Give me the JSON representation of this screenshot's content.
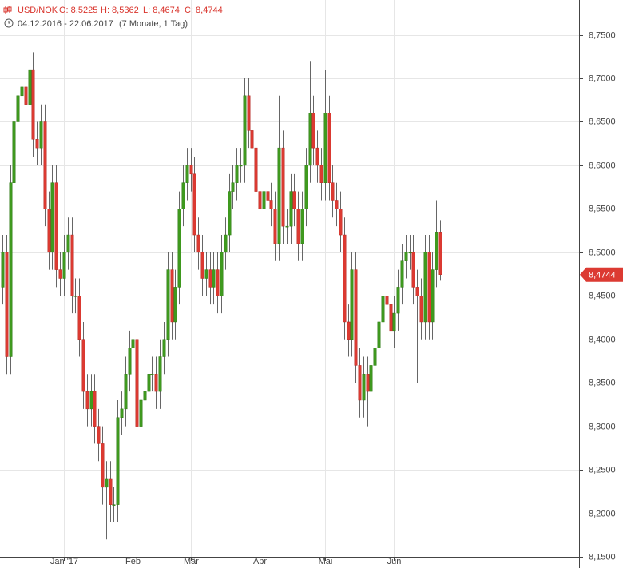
{
  "chart_data": {
    "type": "candlestick",
    "header": {
      "symbol": "USD/NOK",
      "open": "O: 8,5225",
      "high": "H: 8,5362",
      "low": "L: 8,4674",
      "close": "C: 8,4744",
      "range": "04.12.2016 - 22.06.2017",
      "duration": "(7 Monate, 1 Tag)"
    },
    "last_label": "8,4744",
    "up_color": "#3f9a1f",
    "down_color": "#dc3a32",
    "grid": true,
    "categories": [
      null,
      null,
      null,
      null,
      null,
      null,
      null,
      null,
      null,
      null,
      null,
      null,
      null,
      null,
      null,
      null,
      "Jan '17",
      null,
      null,
      null,
      null,
      null,
      null,
      null,
      null,
      null,
      null,
      null,
      null,
      null,
      null,
      null,
      null,
      null,
      "Feb",
      null,
      null,
      null,
      null,
      null,
      null,
      null,
      null,
      null,
      null,
      null,
      null,
      null,
      null,
      "Mär",
      null,
      null,
      null,
      null,
      null,
      null,
      null,
      null,
      null,
      null,
      null,
      null,
      null,
      null,
      null,
      null,
      null,
      "Apr",
      null,
      null,
      null,
      null,
      null,
      null,
      null,
      null,
      null,
      null,
      null,
      null,
      null,
      null,
      null,
      null,
      "Mai",
      null,
      null,
      null,
      null,
      null,
      null,
      null,
      null,
      null,
      null,
      null,
      null,
      null,
      null,
      null,
      null,
      null,
      "Jun",
      null,
      null,
      null,
      null,
      null,
      null,
      null,
      null,
      null,
      null,
      null,
      null
    ],
    "open": [
      8.46,
      8.5,
      8.38,
      8.58,
      8.65,
      8.68,
      8.69,
      8.67,
      8.71,
      8.63,
      8.62,
      8.65,
      8.55,
      8.5,
      8.58,
      8.48,
      8.47,
      8.5,
      8.52,
      8.45,
      8.45,
      8.4,
      8.34,
      8.32,
      8.34,
      8.3,
      8.28,
      8.23,
      8.24,
      8.21,
      8.21,
      8.31,
      8.32,
      8.36,
      8.39,
      8.4,
      8.3,
      8.33,
      8.34,
      8.36,
      8.36,
      8.34,
      8.38,
      8.4,
      8.48,
      8.42,
      8.46,
      8.55,
      8.58,
      8.6,
      8.59,
      8.52,
      8.5,
      8.47,
      8.48,
      8.46,
      8.48,
      8.45,
      8.5,
      8.52,
      8.57,
      8.58,
      8.6,
      8.6,
      8.68,
      8.64,
      8.62,
      8.57,
      8.55,
      8.57,
      8.56,
      8.55,
      8.51,
      8.62,
      8.53,
      8.53,
      8.57,
      8.55,
      8.51,
      8.55,
      8.6,
      8.66,
      8.62,
      8.6,
      8.58,
      8.66,
      8.58,
      8.56,
      8.55,
      8.52,
      8.42,
      8.4,
      8.48,
      8.37,
      8.33,
      8.36,
      8.34,
      8.37,
      8.39,
      8.42,
      8.45,
      8.44,
      8.41,
      8.43,
      8.46,
      8.49,
      8.5,
      8.5,
      8.46,
      8.45,
      8.42,
      8.5,
      8.42,
      8.48,
      8.5225
    ],
    "high": [
      8.52,
      8.52,
      8.6,
      8.67,
      8.7,
      8.71,
      8.71,
      8.76,
      8.73,
      8.65,
      8.67,
      8.67,
      8.57,
      8.6,
      8.6,
      8.5,
      8.52,
      8.54,
      8.54,
      8.47,
      8.47,
      8.42,
      8.36,
      8.36,
      8.36,
      8.32,
      8.3,
      8.26,
      8.26,
      8.23,
      8.33,
      8.34,
      8.38,
      8.41,
      8.42,
      8.42,
      8.35,
      8.36,
      8.38,
      8.38,
      8.38,
      8.4,
      8.42,
      8.5,
      8.5,
      8.48,
      8.57,
      8.6,
      8.62,
      8.62,
      8.61,
      8.54,
      8.52,
      8.5,
      8.5,
      8.5,
      8.5,
      8.52,
      8.54,
      8.59,
      8.6,
      8.62,
      8.62,
      8.7,
      8.7,
      8.66,
      8.64,
      8.59,
      8.59,
      8.59,
      8.58,
      8.57,
      8.68,
      8.64,
      8.55,
      8.59,
      8.59,
      8.57,
      8.57,
      8.62,
      8.72,
      8.68,
      8.64,
      8.62,
      8.71,
      8.68,
      8.6,
      8.58,
      8.57,
      8.54,
      8.44,
      8.5,
      8.5,
      8.39,
      8.38,
      8.38,
      8.39,
      8.41,
      8.44,
      8.47,
      8.47,
      8.46,
      8.45,
      8.48,
      8.51,
      8.52,
      8.52,
      8.52,
      8.48,
      8.47,
      8.52,
      8.52,
      8.5,
      8.56,
      8.5362
    ],
    "low": [
      8.44,
      8.36,
      8.36,
      8.56,
      8.63,
      8.66,
      8.65,
      8.65,
      8.61,
      8.6,
      8.6,
      8.53,
      8.48,
      8.48,
      8.46,
      8.45,
      8.45,
      8.48,
      8.43,
      8.43,
      8.38,
      8.32,
      8.3,
      8.3,
      8.28,
      8.26,
      8.21,
      8.17,
      8.19,
      8.19,
      8.19,
      8.29,
      8.3,
      8.34,
      8.37,
      8.28,
      8.28,
      8.31,
      8.32,
      8.34,
      8.32,
      8.32,
      8.36,
      8.38,
      8.4,
      8.4,
      8.44,
      8.53,
      8.56,
      8.57,
      8.5,
      8.48,
      8.45,
      8.45,
      8.44,
      8.44,
      8.43,
      8.43,
      8.48,
      8.5,
      8.55,
      8.56,
      8.58,
      8.58,
      8.62,
      8.6,
      8.55,
      8.53,
      8.53,
      8.54,
      8.53,
      8.49,
      8.49,
      8.51,
      8.51,
      8.51,
      8.53,
      8.49,
      8.49,
      8.53,
      8.58,
      8.6,
      8.58,
      8.56,
      8.56,
      8.56,
      8.54,
      8.53,
      8.5,
      8.4,
      8.38,
      8.38,
      8.35,
      8.31,
      8.31,
      8.3,
      8.32,
      8.35,
      8.37,
      8.4,
      8.42,
      8.39,
      8.39,
      8.41,
      8.44,
      8.47,
      8.48,
      8.44,
      8.35,
      8.4,
      8.4,
      8.4,
      8.4,
      8.46,
      8.4674
    ],
    "close": [
      8.5,
      8.38,
      8.58,
      8.65,
      8.68,
      8.69,
      8.67,
      8.71,
      8.63,
      8.62,
      8.65,
      8.55,
      8.5,
      8.58,
      8.48,
      8.47,
      8.5,
      8.52,
      8.45,
      8.45,
      8.4,
      8.34,
      8.32,
      8.34,
      8.3,
      8.28,
      8.23,
      8.24,
      8.21,
      8.21,
      8.31,
      8.32,
      8.36,
      8.39,
      8.4,
      8.3,
      8.33,
      8.34,
      8.36,
      8.36,
      8.34,
      8.38,
      8.4,
      8.48,
      8.42,
      8.46,
      8.55,
      8.58,
      8.6,
      8.59,
      8.52,
      8.5,
      8.47,
      8.48,
      8.46,
      8.48,
      8.45,
      8.5,
      8.52,
      8.57,
      8.58,
      8.6,
      8.6,
      8.68,
      8.64,
      8.62,
      8.57,
      8.55,
      8.57,
      8.56,
      8.55,
      8.51,
      8.62,
      8.53,
      8.53,
      8.57,
      8.55,
      8.51,
      8.55,
      8.6,
      8.66,
      8.62,
      8.6,
      8.58,
      8.66,
      8.58,
      8.56,
      8.55,
      8.52,
      8.42,
      8.4,
      8.48,
      8.37,
      8.33,
      8.36,
      8.34,
      8.37,
      8.39,
      8.42,
      8.45,
      8.44,
      8.41,
      8.43,
      8.46,
      8.49,
      8.5,
      8.5,
      8.46,
      8.45,
      8.42,
      8.5,
      8.42,
      8.48,
      8.5225,
      8.4744
    ],
    "ylim": [
      8.15,
      8.79
    ],
    "yticks": [
      {
        "value": 8.15,
        "label": "8,1500"
      },
      {
        "value": 8.2,
        "label": "8,2000"
      },
      {
        "value": 8.25,
        "label": "8,2500"
      },
      {
        "value": 8.3,
        "label": "8,3000"
      },
      {
        "value": 8.35,
        "label": "8,3500"
      },
      {
        "value": 8.4,
        "label": "8,4000"
      },
      {
        "value": 8.45,
        "label": "8,4500"
      },
      {
        "value": 8.5,
        "label": "8,5000"
      },
      {
        "value": 8.55,
        "label": "8,5500"
      },
      {
        "value": 8.6,
        "label": "8,6000"
      },
      {
        "value": 8.65,
        "label": "8,6500"
      },
      {
        "value": 8.7,
        "label": "8,7000"
      },
      {
        "value": 8.75,
        "label": "8,7500"
      }
    ]
  }
}
